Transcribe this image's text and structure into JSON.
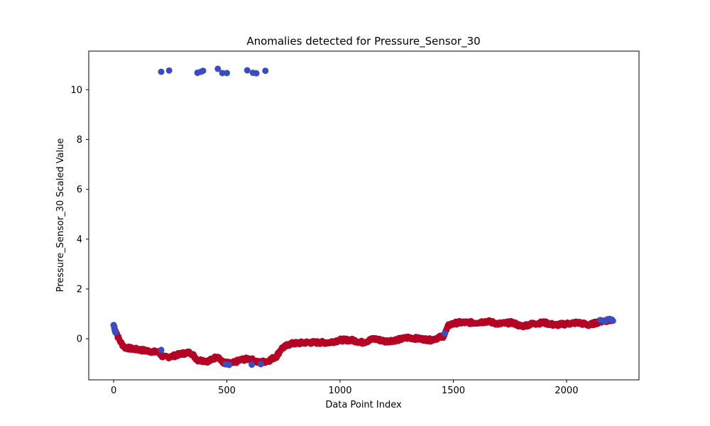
{
  "chart_data": {
    "type": "scatter",
    "title": "Anomalies detected for Pressure_Sensor_30",
    "xlabel": "Data Point Index",
    "ylabel": "Pressure_Sensor_30 Scaled Value",
    "xlim": [
      -110,
      2320
    ],
    "ylim": [
      -1.65,
      11.55
    ],
    "xticks": [
      0,
      500,
      1000,
      1500,
      2000
    ],
    "yticks": [
      0,
      2,
      4,
      6,
      8,
      10
    ],
    "grid": false,
    "colors": {
      "normal": "#b40426",
      "anomaly": "#3b4cc0"
    },
    "baseline": [
      [
        0,
        0.55
      ],
      [
        10,
        0.3
      ],
      [
        20,
        0.05
      ],
      [
        35,
        -0.2
      ],
      [
        50,
        -0.35
      ],
      [
        80,
        -0.4
      ],
      [
        120,
        -0.45
      ],
      [
        160,
        -0.5
      ],
      [
        200,
        -0.55
      ],
      [
        220,
        -0.75
      ],
      [
        260,
        -0.7
      ],
      [
        300,
        -0.6
      ],
      [
        340,
        -0.55
      ],
      [
        370,
        -0.85
      ],
      [
        420,
        -0.9
      ],
      [
        460,
        -0.7
      ],
      [
        480,
        -0.95
      ],
      [
        520,
        -1.0
      ],
      [
        560,
        -0.85
      ],
      [
        600,
        -0.8
      ],
      [
        640,
        -0.95
      ],
      [
        680,
        -0.9
      ],
      [
        720,
        -0.7
      ],
      [
        740,
        -0.4
      ],
      [
        780,
        -0.2
      ],
      [
        850,
        -0.15
      ],
      [
        950,
        -0.15
      ],
      [
        1000,
        -0.05
      ],
      [
        1050,
        -0.05
      ],
      [
        1100,
        -0.15
      ],
      [
        1150,
        0.0
      ],
      [
        1200,
        -0.1
      ],
      [
        1250,
        -0.05
      ],
      [
        1300,
        0.05
      ],
      [
        1350,
        0.0
      ],
      [
        1400,
        -0.05
      ],
      [
        1455,
        0.1
      ],
      [
        1465,
        0.25
      ],
      [
        1480,
        0.55
      ],
      [
        1520,
        0.65
      ],
      [
        1600,
        0.65
      ],
      [
        1650,
        0.7
      ],
      [
        1700,
        0.6
      ],
      [
        1760,
        0.65
      ],
      [
        1800,
        0.5
      ],
      [
        1850,
        0.6
      ],
      [
        1900,
        0.65
      ],
      [
        1950,
        0.55
      ],
      [
        2000,
        0.6
      ],
      [
        2050,
        0.65
      ],
      [
        2100,
        0.55
      ],
      [
        2150,
        0.7
      ],
      [
        2200,
        0.75
      ]
    ],
    "normal_noise": 0.06,
    "anomalies": [
      {
        "x": 0,
        "y": 0.55
      },
      {
        "x": 3,
        "y": 0.42
      },
      {
        "x": 5,
        "y": 0.32
      },
      {
        "x": 8,
        "y": 0.25
      },
      {
        "x": 210,
        "y": 10.72
      },
      {
        "x": 245,
        "y": 10.77
      },
      {
        "x": 370,
        "y": 10.68
      },
      {
        "x": 385,
        "y": 10.72
      },
      {
        "x": 395,
        "y": 10.76
      },
      {
        "x": 460,
        "y": 10.84
      },
      {
        "x": 480,
        "y": 10.67
      },
      {
        "x": 500,
        "y": 10.67
      },
      {
        "x": 590,
        "y": 10.78
      },
      {
        "x": 615,
        "y": 10.68
      },
      {
        "x": 630,
        "y": 10.66
      },
      {
        "x": 670,
        "y": 10.76
      },
      {
        "x": 210,
        "y": -0.45
      },
      {
        "x": 495,
        "y": -1.03
      },
      {
        "x": 510,
        "y": -1.05
      },
      {
        "x": 610,
        "y": -1.04
      },
      {
        "x": 650,
        "y": -1.02
      },
      {
        "x": 1462,
        "y": 0.22
      },
      {
        "x": 2150,
        "y": 0.75
      },
      {
        "x": 2170,
        "y": 0.7
      },
      {
        "x": 2180,
        "y": 0.78
      },
      {
        "x": 2190,
        "y": 0.8
      },
      {
        "x": 2200,
        "y": 0.77
      },
      {
        "x": 2205,
        "y": 0.72
      }
    ]
  }
}
